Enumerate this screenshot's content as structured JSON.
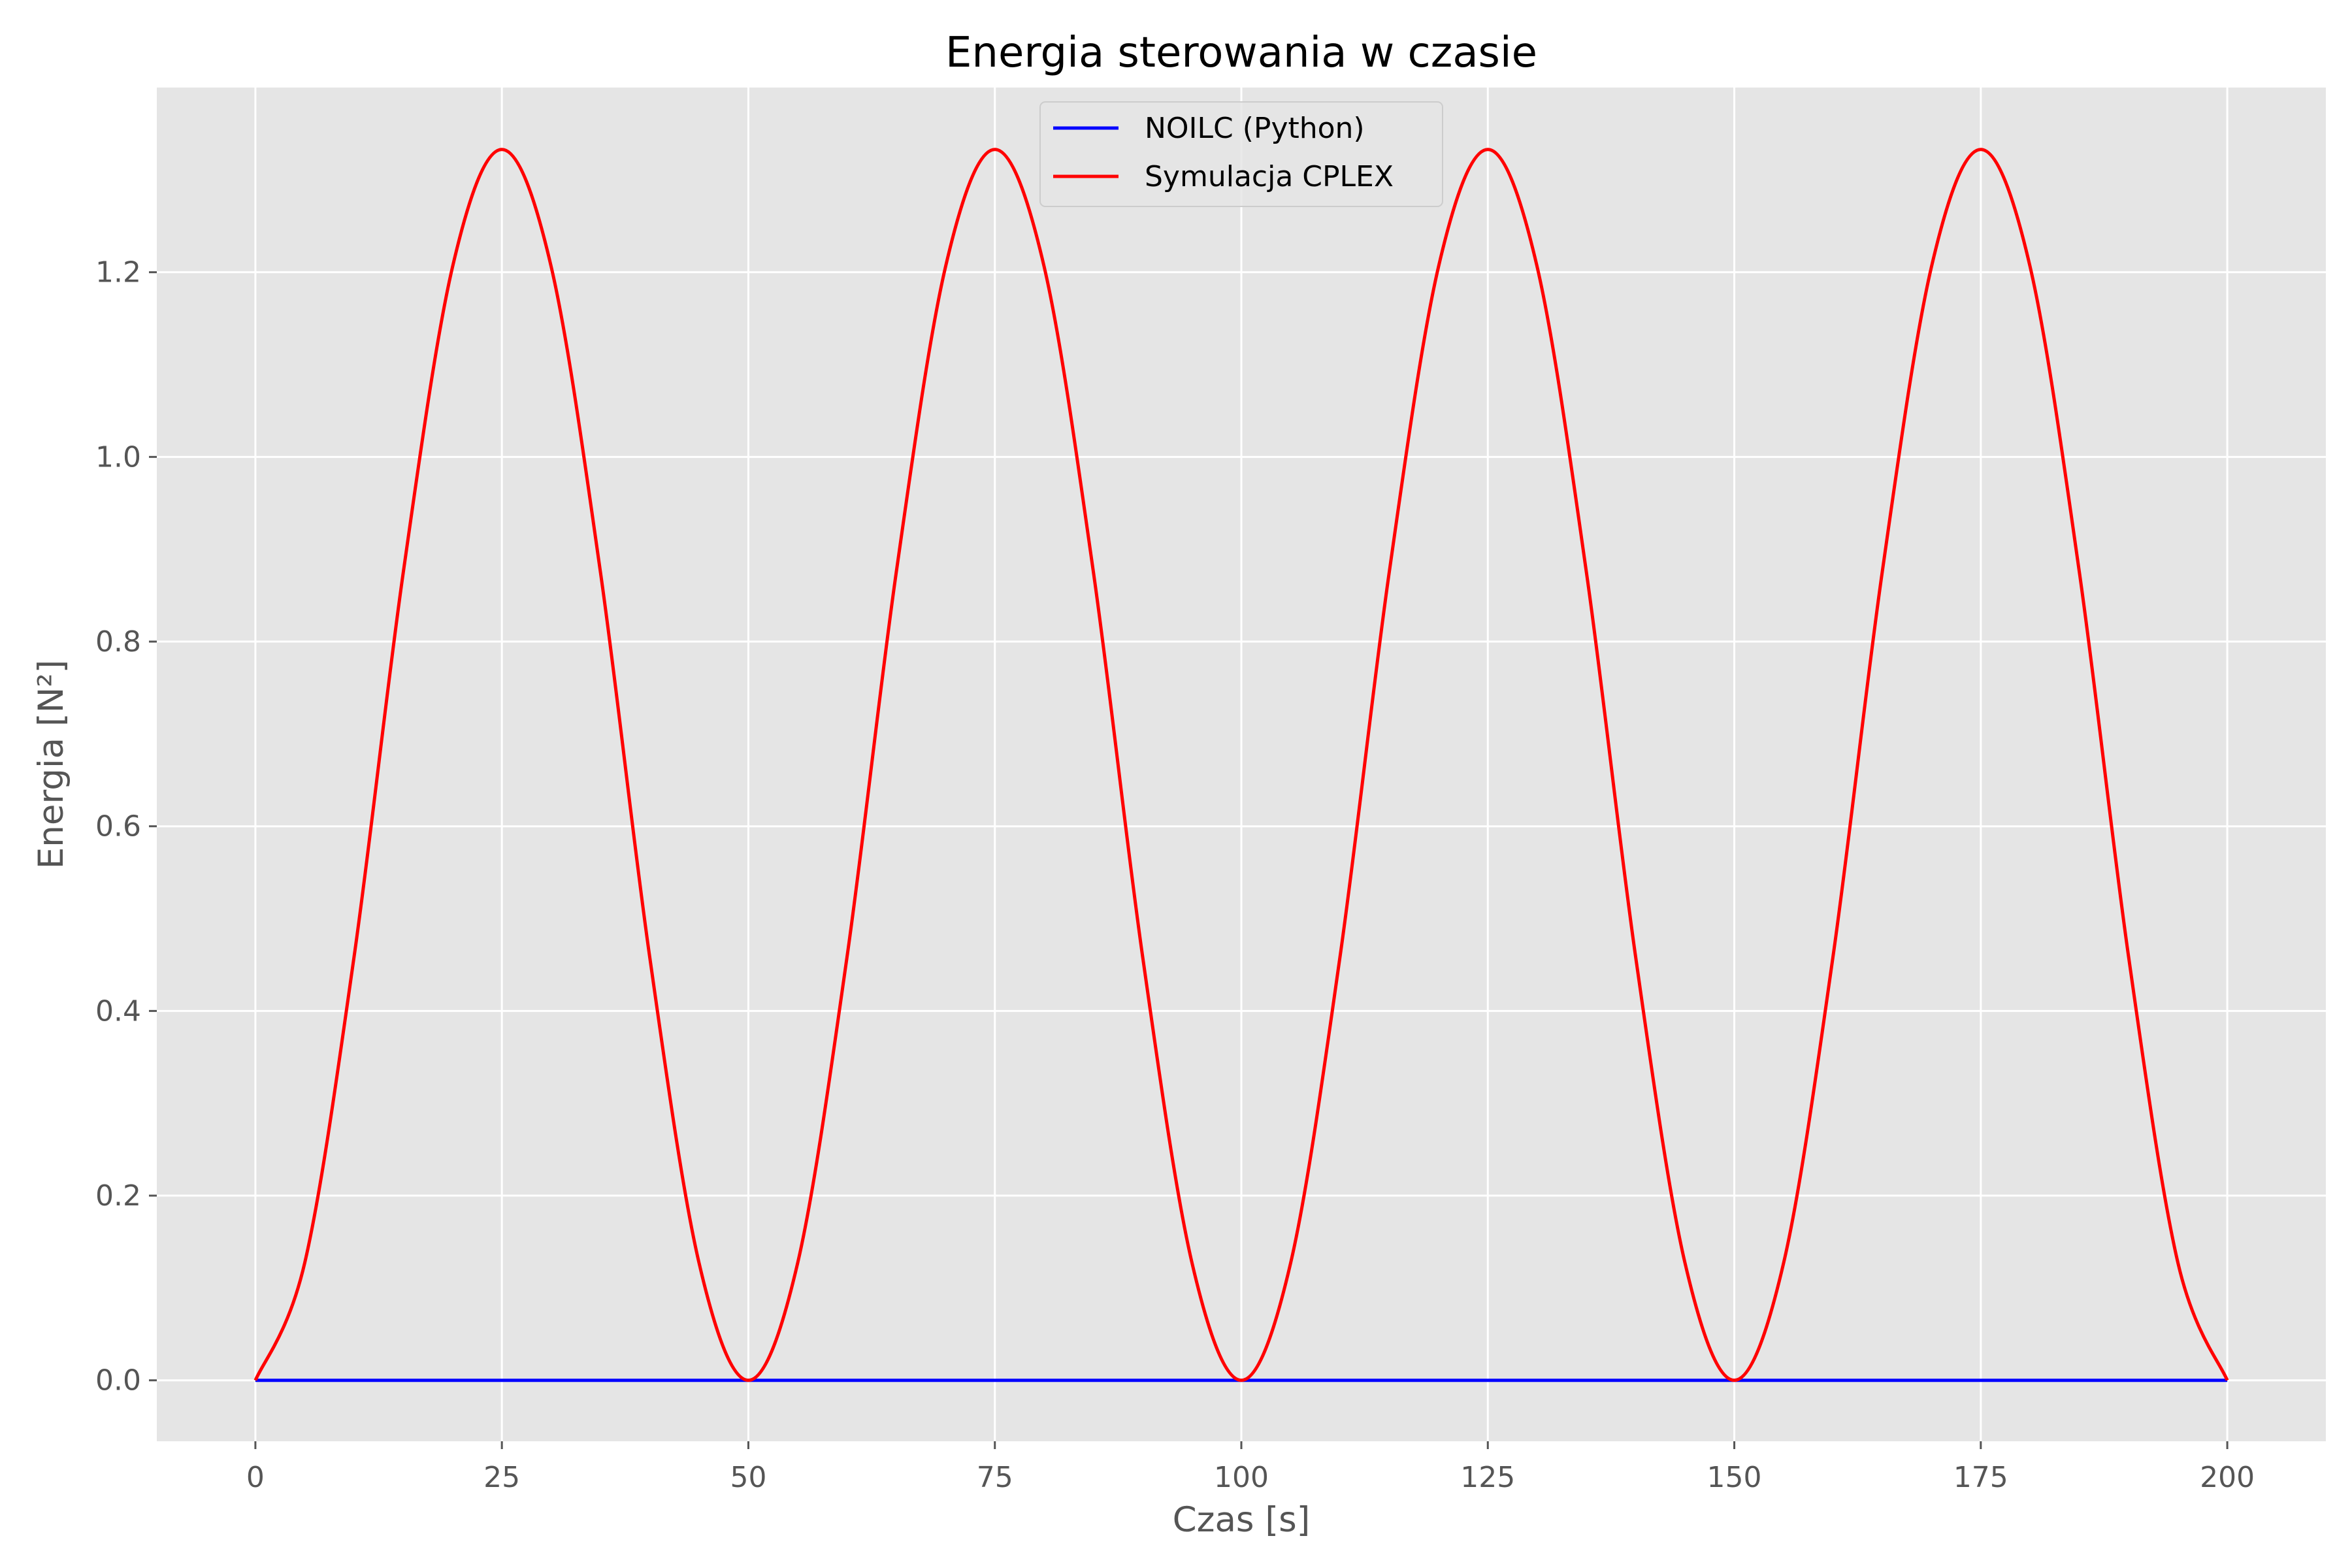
{
  "chart_data": {
    "type": "line",
    "title": "Energia sterowania w czasie",
    "xlabel": "Czas [s]",
    "ylabel": "Energia [N²]",
    "xlim": [
      -10,
      210
    ],
    "ylim": [
      -0.066,
      1.4
    ],
    "grid": true,
    "legend_position": "top-center",
    "xticks": [
      0,
      25,
      50,
      75,
      100,
      125,
      150,
      175,
      200
    ],
    "xtick_labels": [
      "0",
      "25",
      "50",
      "75",
      "100",
      "125",
      "150",
      "175",
      "200"
    ],
    "yticks": [
      0.0,
      0.2,
      0.4,
      0.6,
      0.8,
      1.0,
      1.2
    ],
    "ytick_labels": [
      "0.0",
      "0.2",
      "0.4",
      "0.6",
      "0.8",
      "1.0",
      "1.2"
    ],
    "series": [
      {
        "name": "NOILC (Python)",
        "color": "#0000ff",
        "x": [
          0,
          200
        ],
        "y": [
          0.0,
          0.0
        ]
      },
      {
        "name": "Symulacja CPLEX",
        "color": "#ff0000",
        "x": [
          0,
          5,
          10,
          15,
          20,
          25,
          30,
          35,
          40,
          45,
          50,
          55,
          60,
          65,
          70,
          75,
          80,
          85,
          90,
          95,
          100,
          105,
          110,
          115,
          120,
          125,
          130,
          135,
          140,
          145,
          150,
          155,
          160,
          165,
          170,
          175,
          180,
          185,
          190,
          195,
          200
        ],
        "y": [
          0.0,
          0.127,
          0.458,
          0.875,
          1.206,
          1.333,
          1.206,
          0.875,
          0.458,
          0.127,
          0.0,
          0.127,
          0.458,
          0.875,
          1.206,
          1.333,
          1.206,
          0.875,
          0.458,
          0.127,
          0.0,
          0.127,
          0.458,
          0.875,
          1.206,
          1.333,
          1.206,
          0.875,
          0.458,
          0.127,
          0.0,
          0.127,
          0.458,
          0.875,
          1.206,
          1.333,
          1.206,
          0.875,
          0.458,
          0.127,
          0.0
        ]
      }
    ]
  }
}
